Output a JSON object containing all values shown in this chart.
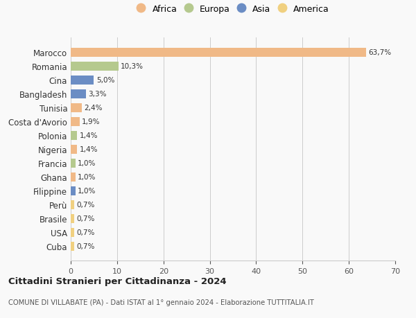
{
  "countries": [
    "Marocco",
    "Romania",
    "Cina",
    "Bangladesh",
    "Tunisia",
    "Costa d'Avorio",
    "Polonia",
    "Nigeria",
    "Francia",
    "Ghana",
    "Filippine",
    "Perù",
    "Brasile",
    "USA",
    "Cuba"
  ],
  "values": [
    63.7,
    10.3,
    5.0,
    3.3,
    2.4,
    1.9,
    1.4,
    1.4,
    1.0,
    1.0,
    1.0,
    0.7,
    0.7,
    0.7,
    0.7
  ],
  "labels": [
    "63,7%",
    "10,3%",
    "5,0%",
    "3,3%",
    "2,4%",
    "1,9%",
    "1,4%",
    "1,4%",
    "1,0%",
    "1,0%",
    "1,0%",
    "0,7%",
    "0,7%",
    "0,7%",
    "0,7%"
  ],
  "continents": [
    "Africa",
    "Europa",
    "Asia",
    "Asia",
    "Africa",
    "Africa",
    "Europa",
    "Africa",
    "Europa",
    "Africa",
    "Asia",
    "America",
    "America",
    "America",
    "America"
  ],
  "colors": {
    "Africa": "#F0B987",
    "Europa": "#B5C98E",
    "Asia": "#6B8DC4",
    "America": "#F0D080"
  },
  "legend_order": [
    "Africa",
    "Europa",
    "Asia",
    "America"
  ],
  "title": "Cittadini Stranieri per Cittadinanza - 2024",
  "subtitle": "COMUNE DI VILLABATE (PA) - Dati ISTAT al 1° gennaio 2024 - Elaborazione TUTTITALIA.IT",
  "xlim": [
    0,
    70
  ],
  "xticks": [
    0,
    10,
    20,
    30,
    40,
    50,
    60,
    70
  ],
  "background_color": "#f9f9f9",
  "grid_color": "#cccccc",
  "bar_height": 0.65
}
